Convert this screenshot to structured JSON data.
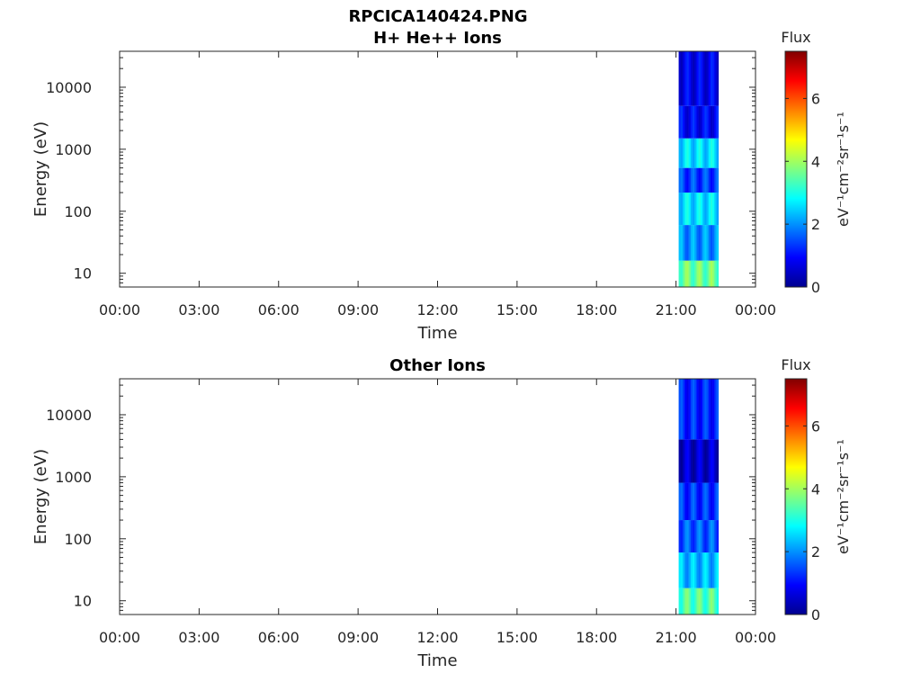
{
  "figure_title": "RPCICA140424.PNG",
  "colormap": [
    "#00008f",
    "#0000ff",
    "#0080ff",
    "#00ffff",
    "#80ff80",
    "#ffff00",
    "#ff8000",
    "#ff0000",
    "#800000"
  ],
  "chart_data": [
    {
      "type": "heatmap",
      "title": "H+ He++ Ions",
      "xlabel": "Time",
      "ylabel": "Energy (eV)",
      "x_ticks": [
        "00:00",
        "03:00",
        "06:00",
        "09:00",
        "12:00",
        "15:00",
        "18:00",
        "21:00",
        "00:00"
      ],
      "x_range_hours": [
        0,
        24
      ],
      "y_scale": "log",
      "y_range": [
        6,
        38000
      ],
      "y_ticks": [
        10,
        100,
        1000,
        10000
      ],
      "y_tick_labels": [
        "10",
        "100",
        "1000",
        "10000"
      ],
      "colorbar": {
        "title": "Flux",
        "unit": "eV⁻¹cm⁻²sr⁻¹s⁻¹",
        "range": [
          0,
          7.5
        ],
        "ticks": [
          "0",
          "2",
          "4",
          "6"
        ]
      },
      "data_interval_hours": [
        21.1,
        22.6
      ],
      "bands": [
        {
          "e_min": 6,
          "e_max": 16,
          "flux": 3.6
        },
        {
          "e_min": 16,
          "e_max": 60,
          "flux": 2.0
        },
        {
          "e_min": 60,
          "e_max": 200,
          "flux": 2.6
        },
        {
          "e_min": 200,
          "e_max": 500,
          "flux": 1.4
        },
        {
          "e_min": 500,
          "e_max": 1500,
          "flux": 2.6
        },
        {
          "e_min": 1500,
          "e_max": 5000,
          "flux": 0.9
        },
        {
          "e_min": 5000,
          "e_max": 38000,
          "flux": 0.8
        }
      ]
    },
    {
      "type": "heatmap",
      "title": "Other Ions",
      "xlabel": "Time",
      "ylabel": "Energy (eV)",
      "x_ticks": [
        "00:00",
        "03:00",
        "06:00",
        "09:00",
        "12:00",
        "15:00",
        "18:00",
        "21:00",
        "00:00"
      ],
      "x_range_hours": [
        0,
        24
      ],
      "y_scale": "log",
      "y_range": [
        6,
        38000
      ],
      "y_ticks": [
        10,
        100,
        1000,
        10000
      ],
      "y_tick_labels": [
        "10",
        "100",
        "1000",
        "10000"
      ],
      "colorbar": {
        "title": "Flux",
        "unit": "eV⁻¹cm⁻²sr⁻¹s⁻¹",
        "range": [
          0,
          7.5
        ],
        "ticks": [
          "0",
          "2",
          "4",
          "6"
        ]
      },
      "data_interval_hours": [
        21.1,
        22.6
      ],
      "bands": [
        {
          "e_min": 6,
          "e_max": 16,
          "flux": 3.4
        },
        {
          "e_min": 16,
          "e_max": 60,
          "flux": 2.3
        },
        {
          "e_min": 60,
          "e_max": 200,
          "flux": 1.6
        },
        {
          "e_min": 200,
          "e_max": 800,
          "flux": 1.3
        },
        {
          "e_min": 800,
          "e_max": 4000,
          "flux": 0.5
        },
        {
          "e_min": 4000,
          "e_max": 38000,
          "flux": 1.2
        }
      ]
    }
  ]
}
